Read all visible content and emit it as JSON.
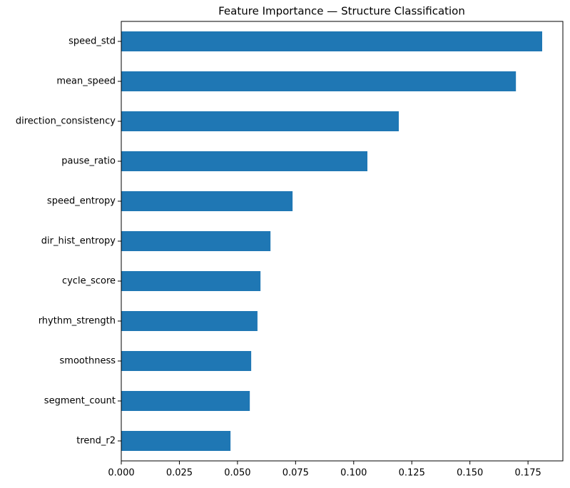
{
  "chart_data": {
    "type": "barh",
    "title": "Feature Importance — Structure Classification",
    "categories": [
      "speed_std",
      "mean_speed",
      "direction_consistency",
      "pause_ratio",
      "speed_entropy",
      "dir_hist_entropy",
      "cycle_score",
      "rhythm_strength",
      "smoothness",
      "segment_count",
      "trend_r2"
    ],
    "values": [
      0.1811,
      0.1698,
      0.1194,
      0.1059,
      0.0737,
      0.0642,
      0.0599,
      0.0586,
      0.0559,
      0.0553,
      0.047
    ],
    "color": "#1f77b4",
    "xlim": [
      0,
      0.19
    ],
    "xticks": [
      {
        "value": 0,
        "label": "0.000"
      },
      {
        "value": 0.025,
        "label": "0.025"
      },
      {
        "value": 0.05,
        "label": "0.050"
      },
      {
        "value": 0.075,
        "label": "0.075"
      },
      {
        "value": 0.1,
        "label": "0.100"
      },
      {
        "value": 0.125,
        "label": "0.125"
      },
      {
        "value": 0.15,
        "label": "0.150"
      },
      {
        "value": 0.175,
        "label": "0.175"
      }
    ],
    "grid": false
  }
}
